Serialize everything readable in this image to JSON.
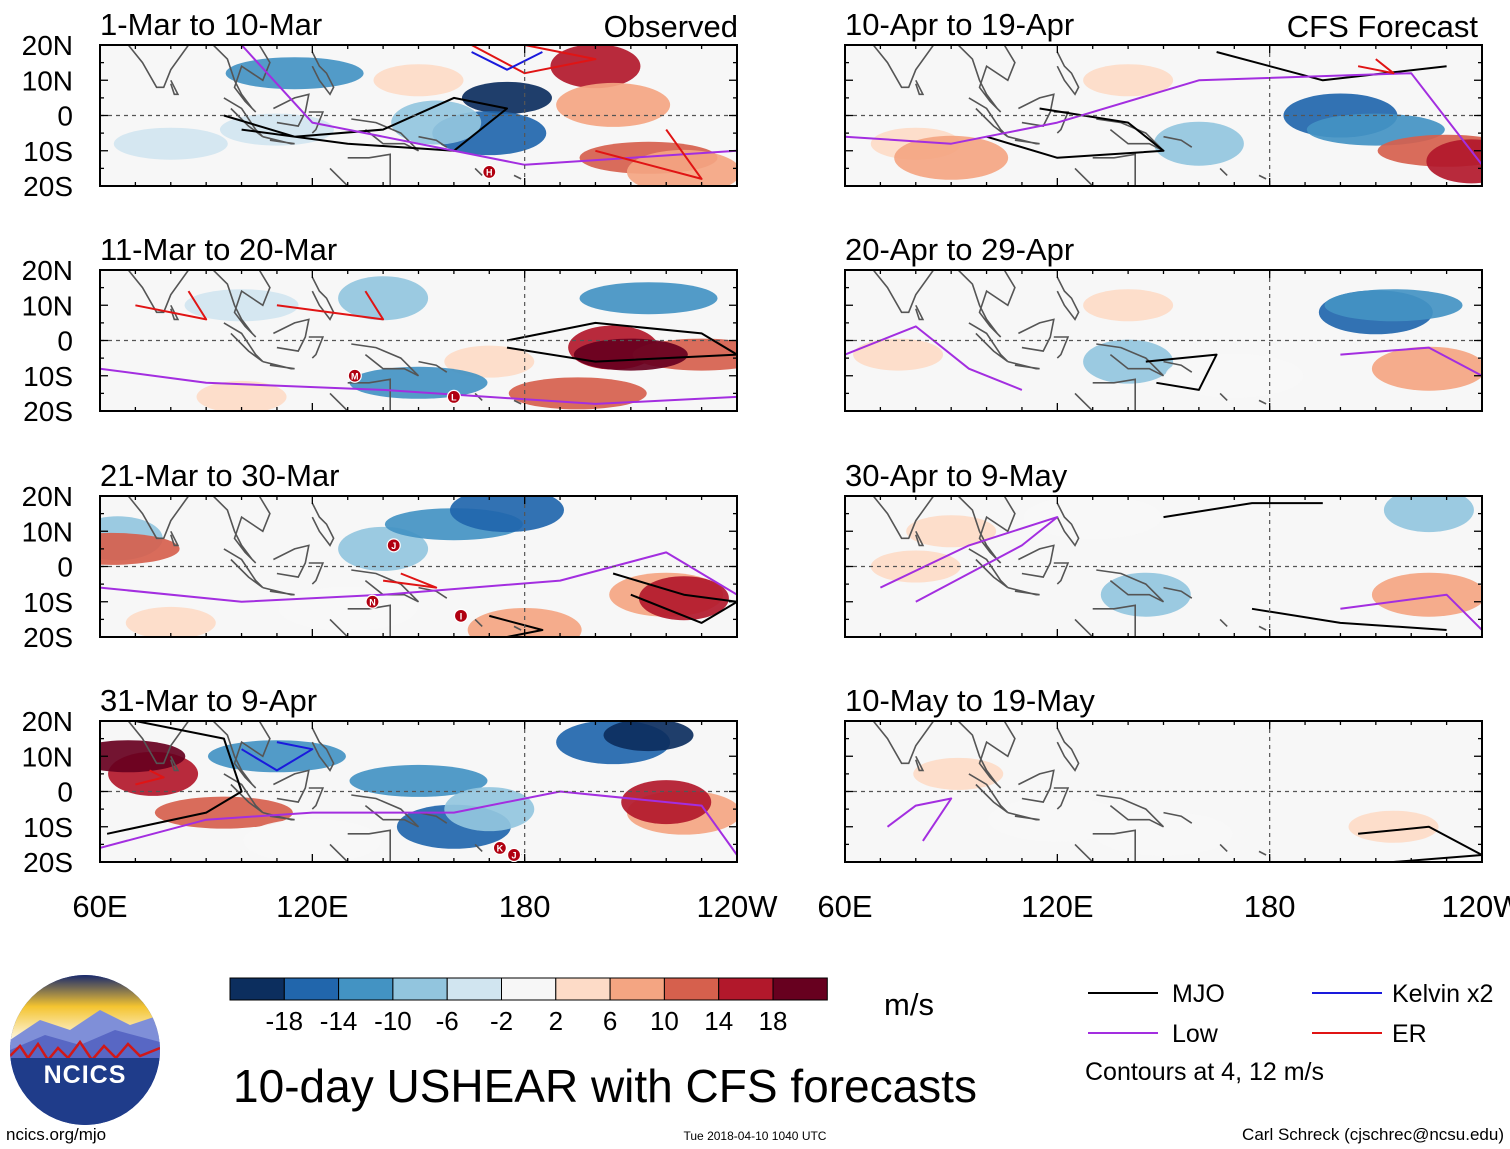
{
  "chart_data": {
    "type": "heatmap",
    "title": "10-day USHEAR with CFS forecasts",
    "variable": "USHEAR",
    "units": "m/s",
    "lat_ticks": [
      "20N",
      "10N",
      "0",
      "10S",
      "20S"
    ],
    "lon_ticks": [
      "60E",
      "120E",
      "180",
      "120W"
    ],
    "lon_range": [
      60,
      240
    ],
    "lat_range": [
      -20,
      20
    ],
    "colorbar": {
      "ticks": [
        "-18",
        "-14",
        "-10",
        "-6",
        "-2",
        "2",
        "6",
        "10",
        "14",
        "18"
      ],
      "colors": [
        "#0c2e5e",
        "#2166ac",
        "#4393c3",
        "#92c5de",
        "#d1e5f0",
        "#f7f7f7",
        "#fddbc7",
        "#f4a582",
        "#d6604d",
        "#b2182b",
        "#67001f"
      ]
    },
    "columns": [
      {
        "label": "Observed",
        "panels": [
          {
            "period": "1-Mar to 10-Mar"
          },
          {
            "period": "11-Mar to 20-Mar"
          },
          {
            "period": "21-Mar to 30-Mar"
          },
          {
            "period": "31-Mar to 9-Apr"
          }
        ]
      },
      {
        "label": "CFS Forecast",
        "panels": [
          {
            "period": "10-Apr to 19-Apr"
          },
          {
            "period": "20-Apr to 29-Apr"
          },
          {
            "period": "30-Apr to 9-May"
          },
          {
            "period": "10-May to 19-May"
          }
        ]
      }
    ],
    "contours_legend": [
      {
        "name": "MJO",
        "color": "#000000"
      },
      {
        "name": "Kelvin x2",
        "color": "#1a1adc"
      },
      {
        "name": "Low",
        "color": "#a32ee0"
      },
      {
        "name": "ER",
        "color": "#e01414"
      }
    ],
    "contour_note": "Contours at 4, 12 m/s",
    "storm_markers": [
      {
        "panel": 0,
        "letter": "H",
        "lon": 170,
        "lat": -16
      },
      {
        "panel": 1,
        "letter": "M",
        "lon": 132,
        "lat": -10
      },
      {
        "panel": 1,
        "letter": "L",
        "lon": 160,
        "lat": -16
      },
      {
        "panel": 2,
        "letter": "J",
        "lon": 143,
        "lat": 6
      },
      {
        "panel": 2,
        "letter": "N",
        "lon": 137,
        "lat": -10
      },
      {
        "panel": 2,
        "letter": "I",
        "lon": 162,
        "lat": -14
      },
      {
        "panel": 3,
        "letter": "K",
        "lon": 173,
        "lat": -16
      },
      {
        "panel": 3,
        "letter": "J",
        "lon": 177,
        "lat": -18
      }
    ]
  },
  "footer": {
    "left": "ncics.org/mjo",
    "timestamp": "Tue 2018-04-10 1040 UTC",
    "right": "Carl Schreck (cjschrec@ncsu.edu)",
    "logo_text": "NCICS"
  },
  "colors": {
    "land_outline": "#555555",
    "marker": "#b00010"
  }
}
